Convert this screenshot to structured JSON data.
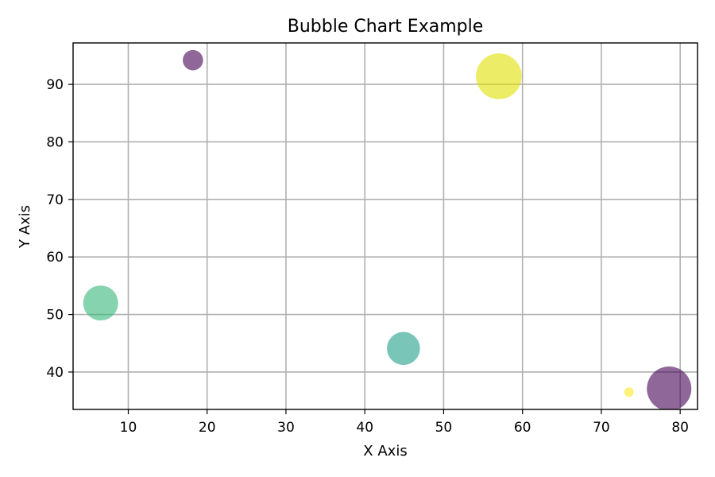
{
  "chart_data": {
    "type": "scatter",
    "title": "Bubble Chart Example",
    "xlabel": "X Axis",
    "ylabel": "Y Axis",
    "xlim": [
      3.0,
      82.2
    ],
    "ylim": [
      33.5,
      97.2
    ],
    "xticks": [
      10,
      20,
      30,
      40,
      50,
      60,
      70,
      80
    ],
    "yticks": [
      40,
      50,
      60,
      70,
      80,
      90
    ],
    "grid": true,
    "bubble_opacity": 0.6,
    "points": [
      {
        "x": 18.2,
        "y": 94.2,
        "size": 0.32,
        "color": "#440154"
      },
      {
        "x": 57.0,
        "y": 91.4,
        "size": 0.72,
        "color": "#e0e000"
      },
      {
        "x": 6.5,
        "y": 52.0,
        "size": 0.55,
        "color": "#35b779"
      },
      {
        "x": 44.9,
        "y": 44.1,
        "size": 0.52,
        "color": "#1f9e89"
      },
      {
        "x": 73.5,
        "y": 36.5,
        "size": 0.15,
        "color": "#fde725"
      },
      {
        "x": 78.6,
        "y": 37.1,
        "size": 0.7,
        "color": "#440154"
      }
    ]
  }
}
